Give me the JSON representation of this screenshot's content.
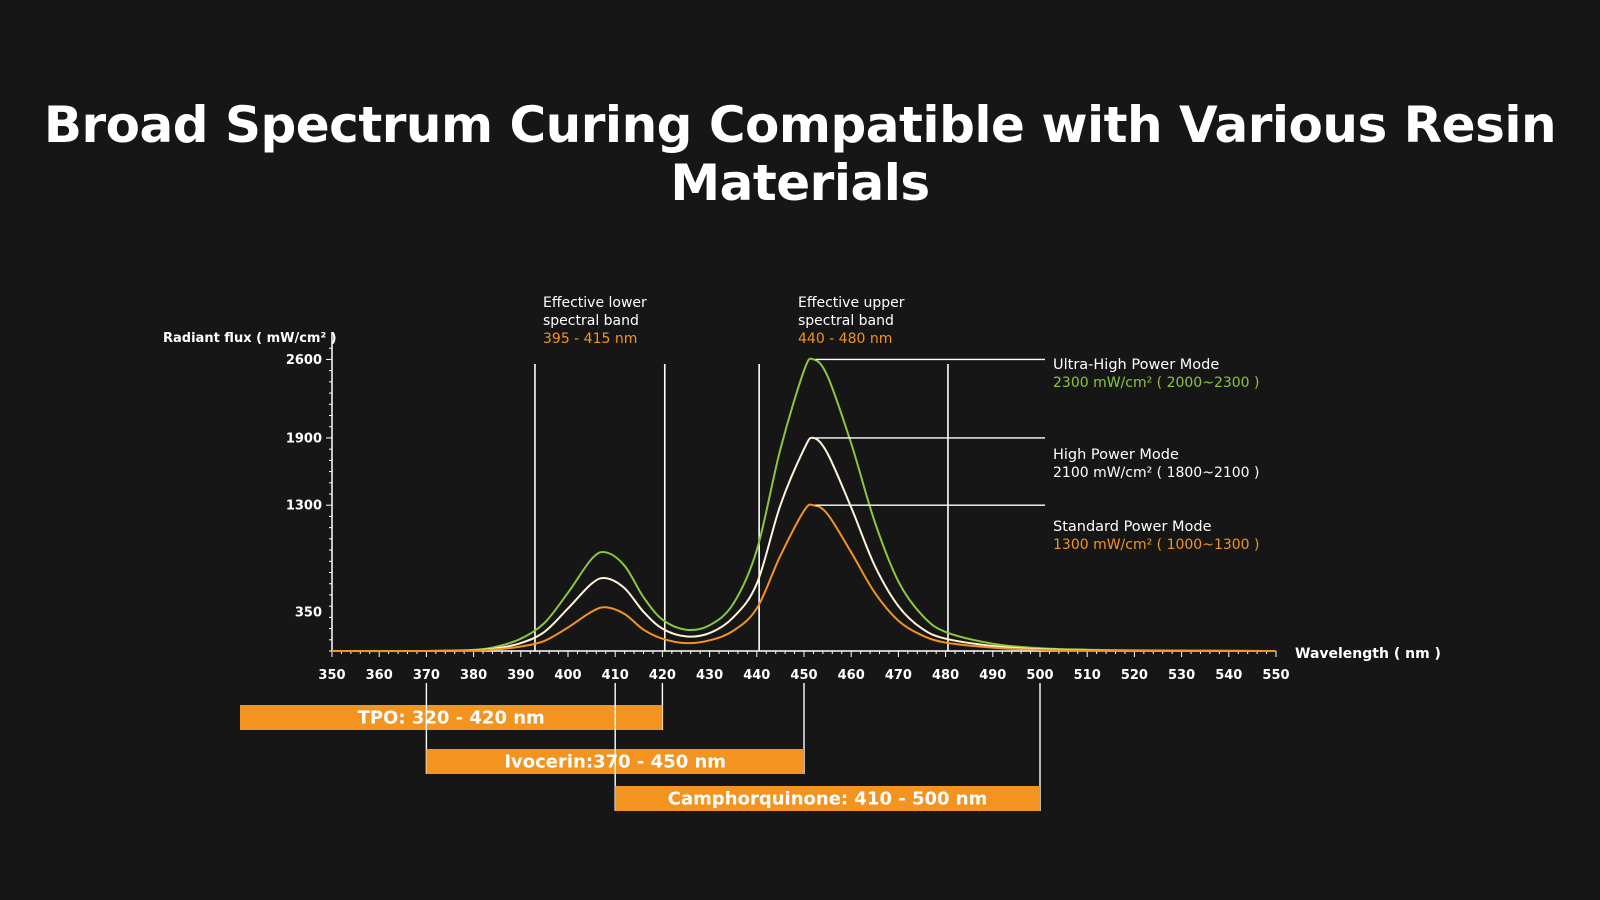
{
  "title": "Broad Spectrum Curing Compatible with Various Resin Materials",
  "colors": {
    "background": "#161616",
    "green": "#8cc63f",
    "cream": "#fff4d6",
    "orange": "#f39320",
    "white": "#ffffff"
  },
  "chart_data": {
    "type": "line",
    "ylabel": "Radiant flux ( mW/cm² )",
    "xlabel": "Wavelength ( nm )",
    "xlim": [
      350,
      550
    ],
    "ylim": [
      0,
      2800
    ],
    "x_ticks": [
      350,
      360,
      370,
      380,
      390,
      400,
      410,
      420,
      430,
      440,
      450,
      460,
      470,
      480,
      490,
      500,
      510,
      520,
      530,
      540,
      550
    ],
    "y_ticks": [
      350,
      1300,
      1900,
      2600
    ],
    "series": [
      {
        "name": "Ultra-High Power Mode",
        "color": "#8cc63f",
        "x": [
          350,
          370,
          380,
          385,
          390,
          395,
          400,
          405,
          408,
          412,
          416,
          420,
          425,
          430,
          435,
          440,
          445,
          450,
          452,
          455,
          460,
          465,
          470,
          475,
          480,
          490,
          500,
          510,
          520,
          550
        ],
        "values": [
          0,
          0,
          10,
          40,
          110,
          250,
          520,
          820,
          880,
          760,
          480,
          280,
          190,
          230,
          420,
          900,
          1800,
          2500,
          2600,
          2450,
          1850,
          1150,
          620,
          320,
          170,
          65,
          25,
          12,
          5,
          0
        ]
      },
      {
        "name": "High Power Mode",
        "color": "#fff4d6",
        "x": [
          350,
          370,
          380,
          385,
          390,
          395,
          400,
          405,
          408,
          412,
          416,
          420,
          425,
          430,
          435,
          440,
          445,
          450,
          452,
          455,
          460,
          465,
          470,
          475,
          480,
          490,
          500,
          510,
          520,
          550
        ],
        "values": [
          0,
          0,
          6,
          25,
          70,
          170,
          380,
          600,
          650,
          560,
          350,
          200,
          130,
          160,
          300,
          600,
          1300,
          1800,
          1900,
          1760,
          1280,
          760,
          400,
          200,
          110,
          45,
          15,
          6,
          3,
          0
        ]
      },
      {
        "name": "Standard Power Mode",
        "color": "#f39320",
        "x": [
          350,
          370,
          380,
          385,
          390,
          395,
          400,
          405,
          408,
          412,
          416,
          420,
          425,
          430,
          435,
          440,
          445,
          450,
          452,
          455,
          460,
          465,
          470,
          475,
          480,
          490,
          500,
          510,
          520,
          550
        ],
        "values": [
          0,
          0,
          4,
          15,
          40,
          90,
          210,
          350,
          390,
          330,
          190,
          110,
          70,
          95,
          180,
          380,
          850,
          1250,
          1300,
          1220,
          880,
          520,
          270,
          140,
          75,
          30,
          10,
          4,
          2,
          0
        ]
      }
    ],
    "bands": [
      {
        "label_line1": "Effective lower",
        "label_line2": "spectral band",
        "range_label": "395 - 415 nm"
      },
      {
        "label_line1": "Effective upper",
        "label_line2": "spectral band",
        "range_label": "440 - 480 nm"
      }
    ],
    "band_lines_x": [
      393,
      420.5,
      440.5,
      480.5
    ],
    "modes": [
      {
        "name": "Ultra-High Power Mode",
        "value_label": "2300 mW/cm² ( 2000~2300 )",
        "peak_x": 452,
        "peak_y": 2600
      },
      {
        "name": "High Power Mode",
        "value_label": "2100 mW/cm² ( 1800~2100 )",
        "peak_x": 452,
        "peak_y": 1900
      },
      {
        "name": "Standard Power Mode",
        "value_label": "1300 mW/cm² ( 1000~1300 )",
        "peak_x": 452,
        "peak_y": 1300
      }
    ],
    "materials": [
      {
        "label": "TPO: 320 - 420 nm",
        "start": 320,
        "end": 420
      },
      {
        "label": "Ivocerin:370 - 450 nm",
        "start": 370,
        "end": 450
      },
      {
        "label": "Camphorquinone: 410 - 500 nm",
        "start": 410,
        "end": 500
      }
    ]
  }
}
